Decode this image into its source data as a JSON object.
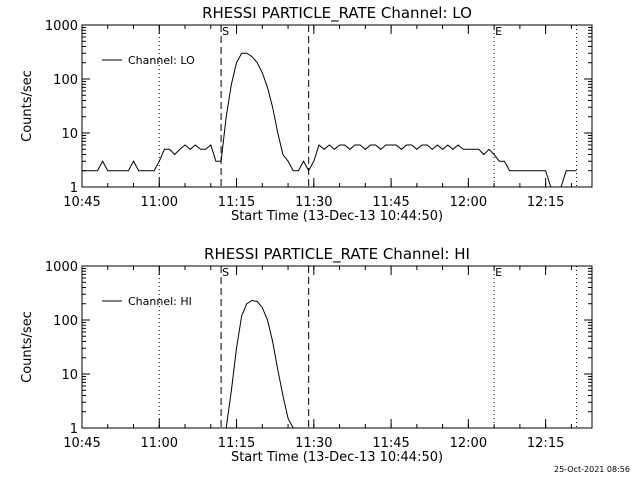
{
  "footer": {
    "timestamp": "25-Oct-2021 08:56"
  },
  "chart_data": [
    {
      "type": "line",
      "title": "RHESSI PARTICLE_RATE Channel: LO",
      "xlabel": "Start Time (13-Dec-13 10:44:50)",
      "ylabel": "Counts/sec",
      "yscale": "log",
      "ylim": [
        1,
        1000
      ],
      "xlim": [
        "10:45",
        "12:24"
      ],
      "x_ticks": [
        "10:45",
        "11:00",
        "11:15",
        "11:30",
        "11:45",
        "12:00",
        "12:15"
      ],
      "y_ticks": [
        "1",
        "10",
        "100",
        "1000"
      ],
      "legend": {
        "label": "Channel: LO",
        "placement": "top-left"
      },
      "vlines": [
        {
          "time": "11:00",
          "style": "dotted",
          "label": ""
        },
        {
          "time": "11:12",
          "style": "dashed",
          "label": "S"
        },
        {
          "time": "11:29",
          "style": "dashed",
          "label": ""
        },
        {
          "time": "12:05",
          "style": "dotted",
          "label": "E"
        },
        {
          "time": "12:21",
          "style": "dotted",
          "label": ""
        }
      ],
      "series": [
        {
          "name": "Channel: LO",
          "x": [
            "10:45",
            "10:46",
            "10:47",
            "10:48",
            "10:49",
            "10:50",
            "10:51",
            "10:52",
            "10:53",
            "10:54",
            "10:55",
            "10:56",
            "10:57",
            "10:58",
            "10:59",
            "11:00",
            "11:01",
            "11:02",
            "11:03",
            "11:04",
            "11:05",
            "11:06",
            "11:07",
            "11:08",
            "11:09",
            "11:10",
            "11:11",
            "11:12",
            "11:13",
            "11:14",
            "11:15",
            "11:16",
            "11:17",
            "11:18",
            "11:19",
            "11:20",
            "11:21",
            "11:22",
            "11:23",
            "11:24",
            "11:25",
            "11:26",
            "11:27",
            "11:28",
            "11:29",
            "11:30",
            "11:31",
            "11:32",
            "11:33",
            "11:34",
            "11:35",
            "11:36",
            "11:37",
            "11:38",
            "11:39",
            "11:40",
            "11:41",
            "11:42",
            "11:43",
            "11:44",
            "11:45",
            "11:46",
            "11:47",
            "11:48",
            "11:49",
            "11:50",
            "11:51",
            "11:52",
            "11:53",
            "11:54",
            "11:55",
            "11:56",
            "11:57",
            "11:58",
            "11:59",
            "12:00",
            "12:01",
            "12:02",
            "12:03",
            "12:04",
            "12:05",
            "12:06",
            "12:07",
            "12:08",
            "12:09",
            "12:10",
            "12:11",
            "12:12",
            "12:13",
            "12:14",
            "12:15",
            "12:16",
            "12:17",
            "12:18",
            "12:19",
            "12:20",
            "12:21"
          ],
          "y": [
            2,
            2,
            2,
            2,
            3,
            2,
            2,
            2,
            2,
            2,
            3,
            2,
            2,
            2,
            2,
            3,
            5,
            5,
            4,
            5,
            6,
            5,
            6,
            5,
            5,
            6,
            3,
            3,
            20,
            80,
            200,
            300,
            300,
            260,
            200,
            130,
            70,
            30,
            10,
            4,
            3,
            2,
            2,
            3,
            2,
            3,
            6,
            5,
            6,
            5,
            6,
            6,
            5,
            6,
            6,
            5,
            6,
            6,
            5,
            6,
            6,
            6,
            5,
            6,
            6,
            5,
            6,
            6,
            5,
            6,
            5,
            6,
            5,
            6,
            5,
            5,
            5,
            5,
            4,
            5,
            4,
            3,
            3,
            2,
            2,
            2,
            2,
            2,
            2,
            2,
            2,
            1,
            1,
            1,
            2,
            2,
            2
          ]
        }
      ]
    },
    {
      "type": "line",
      "title": "RHESSI PARTICLE_RATE Channel: HI",
      "xlabel": "Start Time (13-Dec-13 10:44:50)",
      "ylabel": "Counts/sec",
      "yscale": "log",
      "ylim": [
        1,
        1000
      ],
      "xlim": [
        "10:45",
        "12:24"
      ],
      "x_ticks": [
        "10:45",
        "11:00",
        "11:15",
        "11:30",
        "11:45",
        "12:00",
        "12:15"
      ],
      "y_ticks": [
        "1",
        "10",
        "100",
        "1000"
      ],
      "legend": {
        "label": "Channel: HI",
        "placement": "top-left"
      },
      "vlines": [
        {
          "time": "11:00",
          "style": "dotted",
          "label": ""
        },
        {
          "time": "11:12",
          "style": "dashed",
          "label": "S"
        },
        {
          "time": "11:29",
          "style": "dashed",
          "label": ""
        },
        {
          "time": "12:05",
          "style": "dotted",
          "label": "E"
        },
        {
          "time": "12:21",
          "style": "dotted",
          "label": ""
        }
      ],
      "series": [
        {
          "name": "Channel: HI",
          "x": [
            "11:13",
            "11:14",
            "11:15",
            "11:16",
            "11:17",
            "11:18",
            "11:19",
            "11:20",
            "11:21",
            "11:22",
            "11:23",
            "11:24",
            "11:25",
            "11:26"
          ],
          "y": [
            1,
            5,
            30,
            120,
            200,
            230,
            220,
            170,
            100,
            40,
            12,
            4,
            1.5,
            1
          ]
        }
      ]
    }
  ]
}
